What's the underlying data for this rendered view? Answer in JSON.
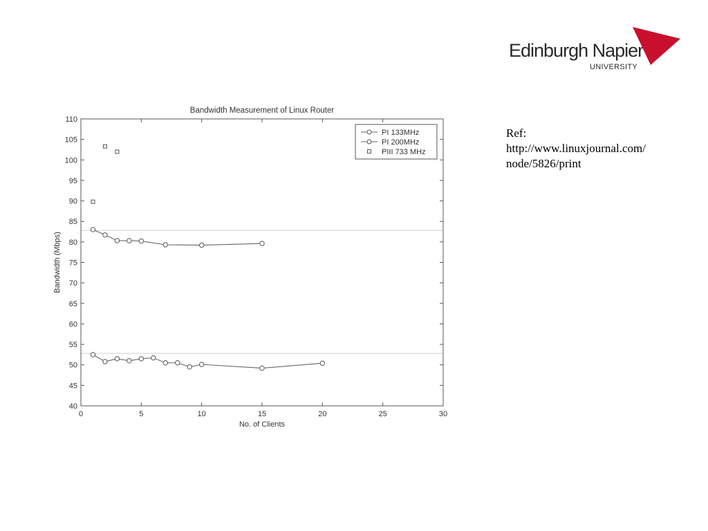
{
  "logo": {
    "name": "Edinburgh Napier",
    "sub": "UNIVERSITY",
    "accent_color": "#c8102e"
  },
  "reference": {
    "label": "Ref:",
    "url_line1": "http://www.linuxjournal.com/",
    "url_line2": "node/5826/print"
  },
  "chart_data": {
    "type": "line",
    "title": "Bandwidth Measurement of Linux Router",
    "xlabel": "No. of Clients",
    "ylabel": "Bandwidth (Mbps)",
    "xlim": [
      0,
      30
    ],
    "ylim": [
      40,
      110
    ],
    "xticks": [
      0,
      5,
      10,
      15,
      20,
      25,
      30
    ],
    "yticks": [
      40,
      45,
      50,
      55,
      60,
      65,
      70,
      75,
      80,
      85,
      90,
      95,
      100,
      105,
      110
    ],
    "grid": false,
    "legend_position": "top-right",
    "reference_lines": [
      82.8,
      52.8
    ],
    "series": [
      {
        "name": "PI 133MHz",
        "marker": "circle",
        "line": true,
        "x": [
          1,
          2,
          3,
          4,
          5,
          6,
          7,
          8,
          9,
          10,
          15,
          20
        ],
        "y": [
          52.5,
          50.8,
          51.5,
          51.0,
          51.5,
          51.7,
          50.5,
          50.5,
          49.5,
          50.1,
          49.2,
          50.4
        ]
      },
      {
        "name": "PI 200MHz",
        "marker": "circle",
        "line": true,
        "x": [
          1,
          2,
          3,
          4,
          5,
          7,
          10,
          15
        ],
        "y": [
          83.0,
          81.7,
          80.3,
          80.3,
          80.2,
          79.3,
          79.2,
          79.6
        ]
      },
      {
        "name": "PIII 733 MHz",
        "marker": "square",
        "line": false,
        "x": [
          1,
          2,
          3
        ],
        "y": [
          89.8,
          103.3,
          102.0
        ]
      }
    ]
  }
}
